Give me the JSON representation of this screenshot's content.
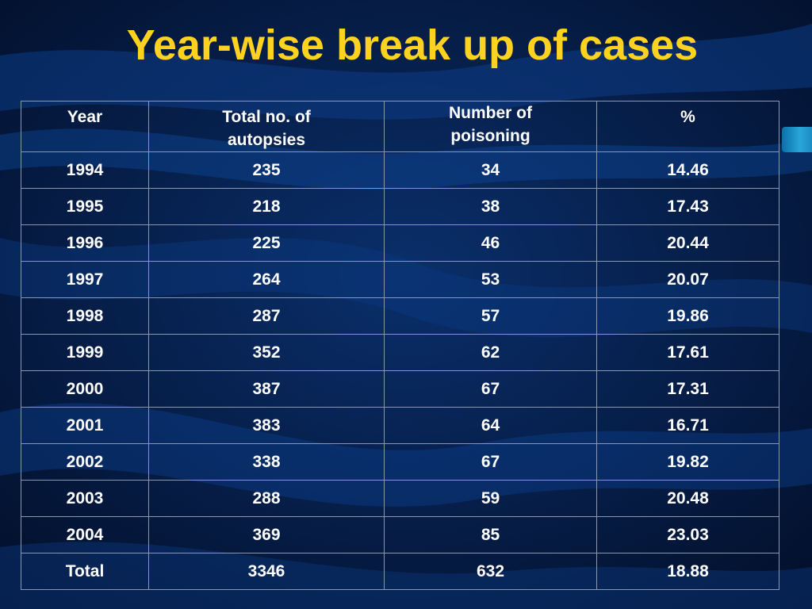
{
  "slide": {
    "title": "Year-wise break up of cases"
  },
  "colors": {
    "background": "#041a3e",
    "title": "#ffd21f",
    "text": "#ffffff",
    "grid": "#8a97ad",
    "accent": "#2aa6da"
  },
  "chart_data": {
    "type": "table",
    "columns": [
      "Year",
      "Total no. of autopsies",
      "Number of poisoning",
      "%"
    ],
    "rows": [
      [
        "1994",
        "235",
        "34",
        "14.46"
      ],
      [
        "1995",
        "218",
        "38",
        "17.43"
      ],
      [
        "1996",
        "225",
        "46",
        "20.44"
      ],
      [
        "1997",
        "264",
        "53",
        "20.07"
      ],
      [
        "1998",
        "287",
        "57",
        "19.86"
      ],
      [
        "1999",
        "352",
        "62",
        "17.61"
      ],
      [
        "2000",
        "387",
        "67",
        "17.31"
      ],
      [
        "2001",
        "383",
        "64",
        "16.71"
      ],
      [
        "2002",
        "338",
        "67",
        "19.82"
      ],
      [
        "2003",
        "288",
        "59",
        "20.48"
      ],
      [
        "2004",
        "369",
        "85",
        "23.03"
      ],
      [
        "Total",
        "3346",
        "632",
        "18.88"
      ]
    ]
  }
}
